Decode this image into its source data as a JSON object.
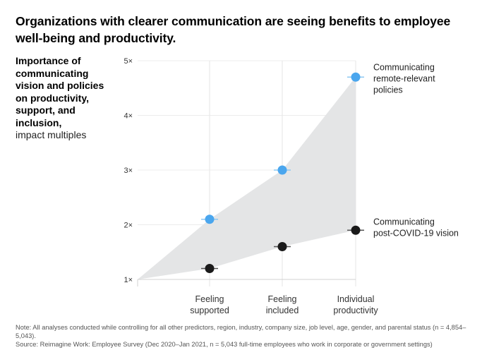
{
  "header": {
    "title": "Organizations with clearer communication are seeing benefits to employee well-being and productivity."
  },
  "chart_data": {
    "type": "scatter",
    "title": "Organizations with clearer communication are seeing benefits to employee well-being and productivity.",
    "ylabel_bold": "Importance of communicating vision and policies on productivity, support, and inclusion,",
    "ylabel_unit": "impact multiples",
    "xlabel": "",
    "ylim": [
      1,
      5
    ],
    "yticks": [
      1,
      2,
      3,
      4,
      5
    ],
    "ytick_labels": [
      "1×",
      "2×",
      "3×",
      "4×",
      "5×"
    ],
    "grid": true,
    "categories": [
      {
        "line1": "Feeling",
        "line2": "supported"
      },
      {
        "line1": "Feeling",
        "line2": "included"
      },
      {
        "line1": "Individual",
        "line2": "productivity"
      }
    ],
    "series": [
      {
        "name": "Communicating remote-relevant policies",
        "legend_lines": [
          "Communicating",
          "remote-relevant",
          "policies"
        ],
        "color": "#4aa6ee",
        "values": [
          2.1,
          3.0,
          4.7
        ]
      },
      {
        "name": "Communicating post-COVID-19 vision",
        "legend_lines": [
          "Communicating",
          "post-COVID-19 vision"
        ],
        "color": "#1a1a1a",
        "values": [
          1.2,
          1.6,
          1.9
        ]
      }
    ],
    "area_fill": "#e4e5e6",
    "area_origin_value": 1
  },
  "footer": {
    "note": "Note: All analyses conducted while controlling for all other predictors, region, industry, company size, job level, age, gender, and parental status (n = 4,854–5,043).",
    "source": "Source: Reimagine Work: Employee Survey (Dec 2020–Jan 2021, n = 5,043 full-time employees who work in corporate or government settings)"
  }
}
